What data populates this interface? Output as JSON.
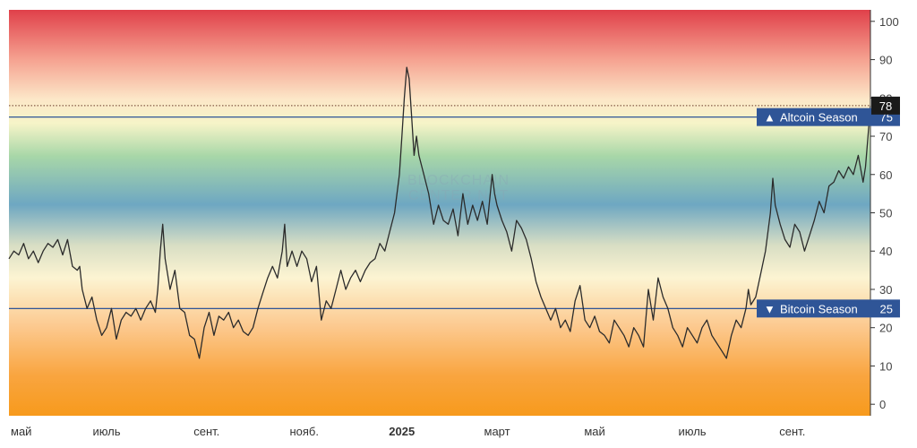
{
  "chart_data": {
    "type": "line",
    "title": "",
    "xlabel": "",
    "ylabel": "",
    "ylim": [
      -3,
      103
    ],
    "y_ticks": [
      0,
      10,
      20,
      30,
      40,
      50,
      60,
      70,
      80,
      90,
      100
    ],
    "y_axis_side": "right",
    "x_ticks": [
      {
        "label": "май",
        "t": 0.0,
        "bold": false
      },
      {
        "label": "июль",
        "t": 2.0,
        "bold": false
      },
      {
        "label": "сент.",
        "t": 4.05,
        "bold": false
      },
      {
        "label": "нояб.",
        "t": 6.05,
        "bold": false
      },
      {
        "label": "2025",
        "t": 8.05,
        "bold": true
      },
      {
        "label": "март",
        "t": 10.0,
        "bold": false
      },
      {
        "label": "май",
        "t": 12.0,
        "bold": false
      },
      {
        "label": "июль",
        "t": 14.0,
        "bold": false
      },
      {
        "label": "сент.",
        "t": 16.05,
        "bold": false
      }
    ],
    "background": "gradient from orange (0) through cream, blue (50), green and yellow to red (100)",
    "grid": false,
    "reference_lines": [
      {
        "value": 75,
        "label": "Altcoin Season",
        "marker": "▲",
        "value_label": "75",
        "color": "#2f5597"
      },
      {
        "value": 25,
        "label": "Bitcoin Season",
        "marker": "▼",
        "value_label": "25",
        "color": "#2f5597"
      }
    ],
    "current": {
      "value": 78,
      "label": "78",
      "color": "#1a1a1a"
    },
    "watermark": [
      "BLOCKCHAIN",
      "CENTER.NET"
    ],
    "series": [
      {
        "color": "#2b2b2b",
        "points": [
          [
            0.0,
            38
          ],
          [
            0.1,
            40
          ],
          [
            0.2,
            39
          ],
          [
            0.3,
            42
          ],
          [
            0.4,
            38
          ],
          [
            0.5,
            40
          ],
          [
            0.6,
            37
          ],
          [
            0.7,
            40
          ],
          [
            0.8,
            42
          ],
          [
            0.9,
            41
          ],
          [
            1.0,
            43
          ],
          [
            1.1,
            39
          ],
          [
            1.2,
            43
          ],
          [
            1.3,
            36
          ],
          [
            1.4,
            35
          ],
          [
            1.45,
            36
          ],
          [
            1.5,
            30
          ],
          [
            1.6,
            25
          ],
          [
            1.7,
            28
          ],
          [
            1.8,
            22
          ],
          [
            1.9,
            18
          ],
          [
            2.0,
            20
          ],
          [
            2.1,
            25
          ],
          [
            2.2,
            17
          ],
          [
            2.3,
            22
          ],
          [
            2.4,
            24
          ],
          [
            2.5,
            23
          ],
          [
            2.6,
            25
          ],
          [
            2.7,
            22
          ],
          [
            2.8,
            25
          ],
          [
            2.9,
            27
          ],
          [
            3.0,
            24
          ],
          [
            3.05,
            30
          ],
          [
            3.1,
            40
          ],
          [
            3.15,
            47
          ],
          [
            3.2,
            38
          ],
          [
            3.3,
            30
          ],
          [
            3.4,
            35
          ],
          [
            3.5,
            25
          ],
          [
            3.6,
            24
          ],
          [
            3.7,
            18
          ],
          [
            3.8,
            17
          ],
          [
            3.9,
            12
          ],
          [
            4.0,
            20
          ],
          [
            4.1,
            24
          ],
          [
            4.2,
            18
          ],
          [
            4.3,
            23
          ],
          [
            4.4,
            22
          ],
          [
            4.5,
            24
          ],
          [
            4.6,
            20
          ],
          [
            4.7,
            22
          ],
          [
            4.8,
            19
          ],
          [
            4.9,
            18
          ],
          [
            5.0,
            20
          ],
          [
            5.1,
            25
          ],
          [
            5.2,
            29
          ],
          [
            5.3,
            33
          ],
          [
            5.4,
            36
          ],
          [
            5.5,
            33
          ],
          [
            5.6,
            40
          ],
          [
            5.65,
            47
          ],
          [
            5.7,
            36
          ],
          [
            5.8,
            40
          ],
          [
            5.9,
            36
          ],
          [
            6.0,
            40
          ],
          [
            6.1,
            38
          ],
          [
            6.2,
            32
          ],
          [
            6.3,
            36
          ],
          [
            6.4,
            22
          ],
          [
            6.5,
            27
          ],
          [
            6.6,
            25
          ],
          [
            6.7,
            30
          ],
          [
            6.8,
            35
          ],
          [
            6.9,
            30
          ],
          [
            7.0,
            33
          ],
          [
            7.1,
            35
          ],
          [
            7.2,
            32
          ],
          [
            7.3,
            35
          ],
          [
            7.4,
            37
          ],
          [
            7.5,
            38
          ],
          [
            7.6,
            42
          ],
          [
            7.7,
            40
          ],
          [
            7.8,
            45
          ],
          [
            7.9,
            50
          ],
          [
            8.0,
            60
          ],
          [
            8.05,
            70
          ],
          [
            8.1,
            80
          ],
          [
            8.15,
            88
          ],
          [
            8.2,
            85
          ],
          [
            8.25,
            75
          ],
          [
            8.3,
            65
          ],
          [
            8.35,
            70
          ],
          [
            8.4,
            65
          ],
          [
            8.5,
            60
          ],
          [
            8.6,
            55
          ],
          [
            8.7,
            47
          ],
          [
            8.8,
            52
          ],
          [
            8.9,
            48
          ],
          [
            9.0,
            47
          ],
          [
            9.1,
            51
          ],
          [
            9.2,
            44
          ],
          [
            9.3,
            55
          ],
          [
            9.4,
            47
          ],
          [
            9.5,
            52
          ],
          [
            9.6,
            48
          ],
          [
            9.7,
            53
          ],
          [
            9.8,
            47
          ],
          [
            9.9,
            60
          ],
          [
            9.95,
            55
          ],
          [
            10.0,
            52
          ],
          [
            10.1,
            48
          ],
          [
            10.2,
            45
          ],
          [
            10.3,
            40
          ],
          [
            10.4,
            48
          ],
          [
            10.5,
            46
          ],
          [
            10.6,
            43
          ],
          [
            10.7,
            38
          ],
          [
            10.8,
            32
          ],
          [
            10.9,
            28
          ],
          [
            11.0,
            25
          ],
          [
            11.1,
            22
          ],
          [
            11.2,
            25
          ],
          [
            11.3,
            20
          ],
          [
            11.4,
            22
          ],
          [
            11.5,
            19
          ],
          [
            11.6,
            27
          ],
          [
            11.7,
            31
          ],
          [
            11.8,
            22
          ],
          [
            11.9,
            20
          ],
          [
            12.0,
            23
          ],
          [
            12.1,
            19
          ],
          [
            12.2,
            18
          ],
          [
            12.3,
            16
          ],
          [
            12.4,
            22
          ],
          [
            12.5,
            20
          ],
          [
            12.6,
            18
          ],
          [
            12.7,
            15
          ],
          [
            12.8,
            20
          ],
          [
            12.9,
            18
          ],
          [
            13.0,
            15
          ],
          [
            13.1,
            30
          ],
          [
            13.2,
            22
          ],
          [
            13.3,
            33
          ],
          [
            13.4,
            28
          ],
          [
            13.5,
            25
          ],
          [
            13.6,
            20
          ],
          [
            13.7,
            18
          ],
          [
            13.8,
            15
          ],
          [
            13.9,
            20
          ],
          [
            14.0,
            18
          ],
          [
            14.1,
            16
          ],
          [
            14.2,
            20
          ],
          [
            14.3,
            22
          ],
          [
            14.4,
            18
          ],
          [
            14.5,
            16
          ],
          [
            14.6,
            14
          ],
          [
            14.7,
            12
          ],
          [
            14.8,
            18
          ],
          [
            14.9,
            22
          ],
          [
            15.0,
            20
          ],
          [
            15.1,
            25
          ],
          [
            15.15,
            30
          ],
          [
            15.2,
            26
          ],
          [
            15.3,
            28
          ],
          [
            15.4,
            34
          ],
          [
            15.5,
            40
          ],
          [
            15.6,
            50
          ],
          [
            15.65,
            59
          ],
          [
            15.7,
            52
          ],
          [
            15.8,
            47
          ],
          [
            15.9,
            43
          ],
          [
            16.0,
            41
          ],
          [
            16.1,
            47
          ],
          [
            16.2,
            45
          ],
          [
            16.3,
            40
          ],
          [
            16.4,
            44
          ],
          [
            16.5,
            48
          ],
          [
            16.6,
            53
          ],
          [
            16.7,
            50
          ],
          [
            16.8,
            57
          ],
          [
            16.9,
            58
          ],
          [
            17.0,
            61
          ],
          [
            17.1,
            59
          ],
          [
            17.2,
            62
          ],
          [
            17.3,
            60
          ],
          [
            17.4,
            65
          ],
          [
            17.5,
            58
          ],
          [
            17.55,
            62
          ],
          [
            17.6,
            70
          ],
          [
            17.65,
            78
          ]
        ]
      }
    ]
  }
}
